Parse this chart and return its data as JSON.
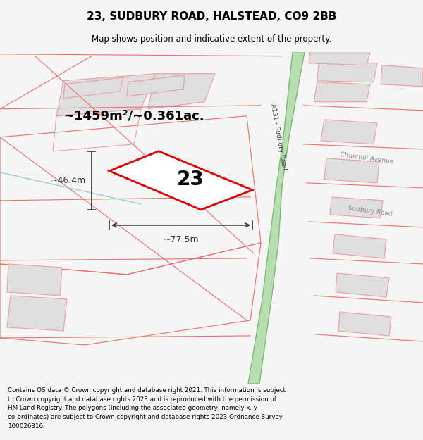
{
  "title": "23, SUDBURY ROAD, HALSTEAD, CO9 2BB",
  "subtitle": "Map shows position and indicative extent of the property.",
  "footer_text": "Contains OS data © Crown copyright and database right 2021. This information is subject\nto Crown copyright and database rights 2023 and is reproduced with the permission of\nHM Land Registry. The polygons (including the associated geometry, namely x, y\nco-ordinates) are subject to Crown copyright and database rights 2023 Ordnance Survey\n100026316.",
  "bg_color": "#f5f5f5",
  "map_bg": "#ffffff",
  "road_green_fill": "#b8ddb0",
  "road_green_edge": "#7db87d",
  "building_fill": "#dedede",
  "building_stroke": "#e8a0a0",
  "parcel_stroke": "#e87070",
  "plot_fill": "#ffffff",
  "plot_stroke": "#dd0000",
  "plot_label": "23",
  "area_text": "~1459m²/~0.361ac.",
  "dim_width": "~77.5m",
  "dim_height": "~46.4m",
  "road_label": "A131 - Sudbury Road",
  "road_label2": "A131 - Sudbury Road",
  "label_churchill": "Churchill Avenue",
  "label_sudbury": "Sudbury Road",
  "dim_color": "#333333",
  "label_color": "#888888",
  "road_text_color": "#333333"
}
